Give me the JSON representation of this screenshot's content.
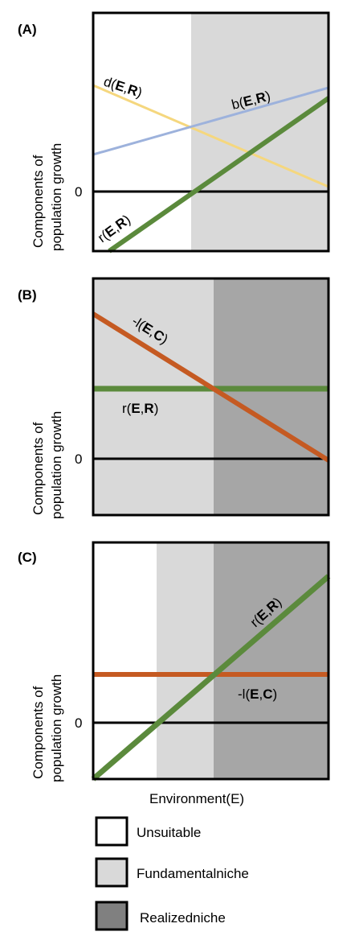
{
  "colors": {
    "unsuitable": "#ffffff",
    "fundamental": "#d9d9d9",
    "realized": "#a6a6a6",
    "legend_realized": "#808080",
    "yellow": "#f5d77e",
    "blue": "#9db2dc",
    "green": "#5b8a3c",
    "orange": "#c55a22",
    "black": "#000000"
  },
  "ylabel_line1": "Components of",
  "ylabel_line2": "population growth",
  "xlabel": "Environment(E)",
  "zero_label": "0",
  "panels": [
    {
      "letter": "(A)",
      "labels": {
        "d": {
          "pre": "d(",
          "bold": "E",
          "mid": ",",
          "bold2": "R",
          "post": ")"
        },
        "b": {
          "pre": "b(",
          "bold": "E",
          "mid": ",",
          "bold2": "R",
          "post": ")"
        },
        "r": {
          "pre": "r(",
          "bold": "E",
          "mid": ",",
          "bold2": "R",
          "post": ")"
        }
      }
    },
    {
      "letter": "(B)",
      "labels": {
        "l": {
          "pre": "-l(",
          "bold": "E",
          "mid": ",",
          "bold2": "C",
          "post": ")"
        },
        "r": {
          "pre": "r(",
          "bold": "E",
          "mid": ",",
          "bold2": "R",
          "post": ")"
        }
      }
    },
    {
      "letter": "(C)",
      "labels": {
        "r": {
          "pre": "r(",
          "bold": "E",
          "mid": ",",
          "bold2": "R",
          "post": ")"
        },
        "l": {
          "pre": "-l(",
          "bold": "E",
          "mid": ",",
          "bold2": "C",
          "post": ")"
        }
      }
    }
  ],
  "legend": [
    {
      "label": "Unsuitable",
      "color_key": "unsuitable"
    },
    {
      "label": "Fundamentalniche",
      "color_key": "fundamental"
    },
    {
      "label": "Realizedniche",
      "color_key": "legend_realized"
    }
  ]
}
